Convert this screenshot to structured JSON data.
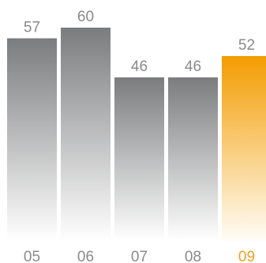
{
  "chart_data": {
    "type": "bar",
    "categories": [
      "05",
      "06",
      "07",
      "08",
      "09"
    ],
    "values": [
      57,
      60,
      46,
      46,
      52
    ],
    "highlight_index": 4,
    "ylim": [
      0,
      60
    ],
    "grid": false,
    "legend": "none",
    "colors": {
      "bar_top": "#7b7c7e",
      "bar_bottom": "#ffffff",
      "highlight_top": "#f39c00",
      "highlight_bottom": "#fffdf8",
      "label": "#8a8a8a",
      "highlight_label": "#f0a020"
    }
  }
}
